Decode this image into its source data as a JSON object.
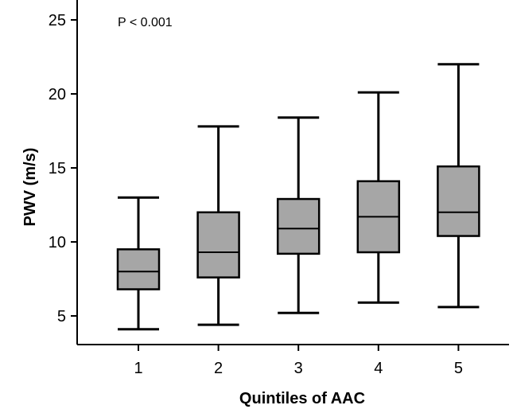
{
  "chart_data": {
    "type": "boxplot",
    "annotation": "P < 0.001",
    "xlabel": "Quintiles of AAC",
    "ylabel": "PWV (m/s)",
    "ylim": [
      2,
      26
    ],
    "yticks": [
      5,
      10,
      15,
      20,
      25
    ],
    "grid": false,
    "box_color": "#a6a6a6",
    "categories": [
      "1",
      "2",
      "3",
      "4",
      "5"
    ],
    "boxes": [
      {
        "category": "1",
        "min": 4.1,
        "q1": 6.8,
        "median": 8.0,
        "q3": 9.5,
        "max": 13.0
      },
      {
        "category": "2",
        "min": 4.4,
        "q1": 7.6,
        "median": 9.3,
        "q3": 12.0,
        "max": 17.8
      },
      {
        "category": "3",
        "min": 5.2,
        "q1": 9.2,
        "median": 10.9,
        "q3": 12.9,
        "max": 18.4
      },
      {
        "category": "4",
        "min": 5.9,
        "q1": 9.3,
        "median": 11.7,
        "q3": 14.1,
        "max": 20.1
      },
      {
        "category": "5",
        "min": 5.6,
        "q1": 10.4,
        "median": 12.0,
        "q3": 15.1,
        "max": 22.0
      }
    ]
  }
}
